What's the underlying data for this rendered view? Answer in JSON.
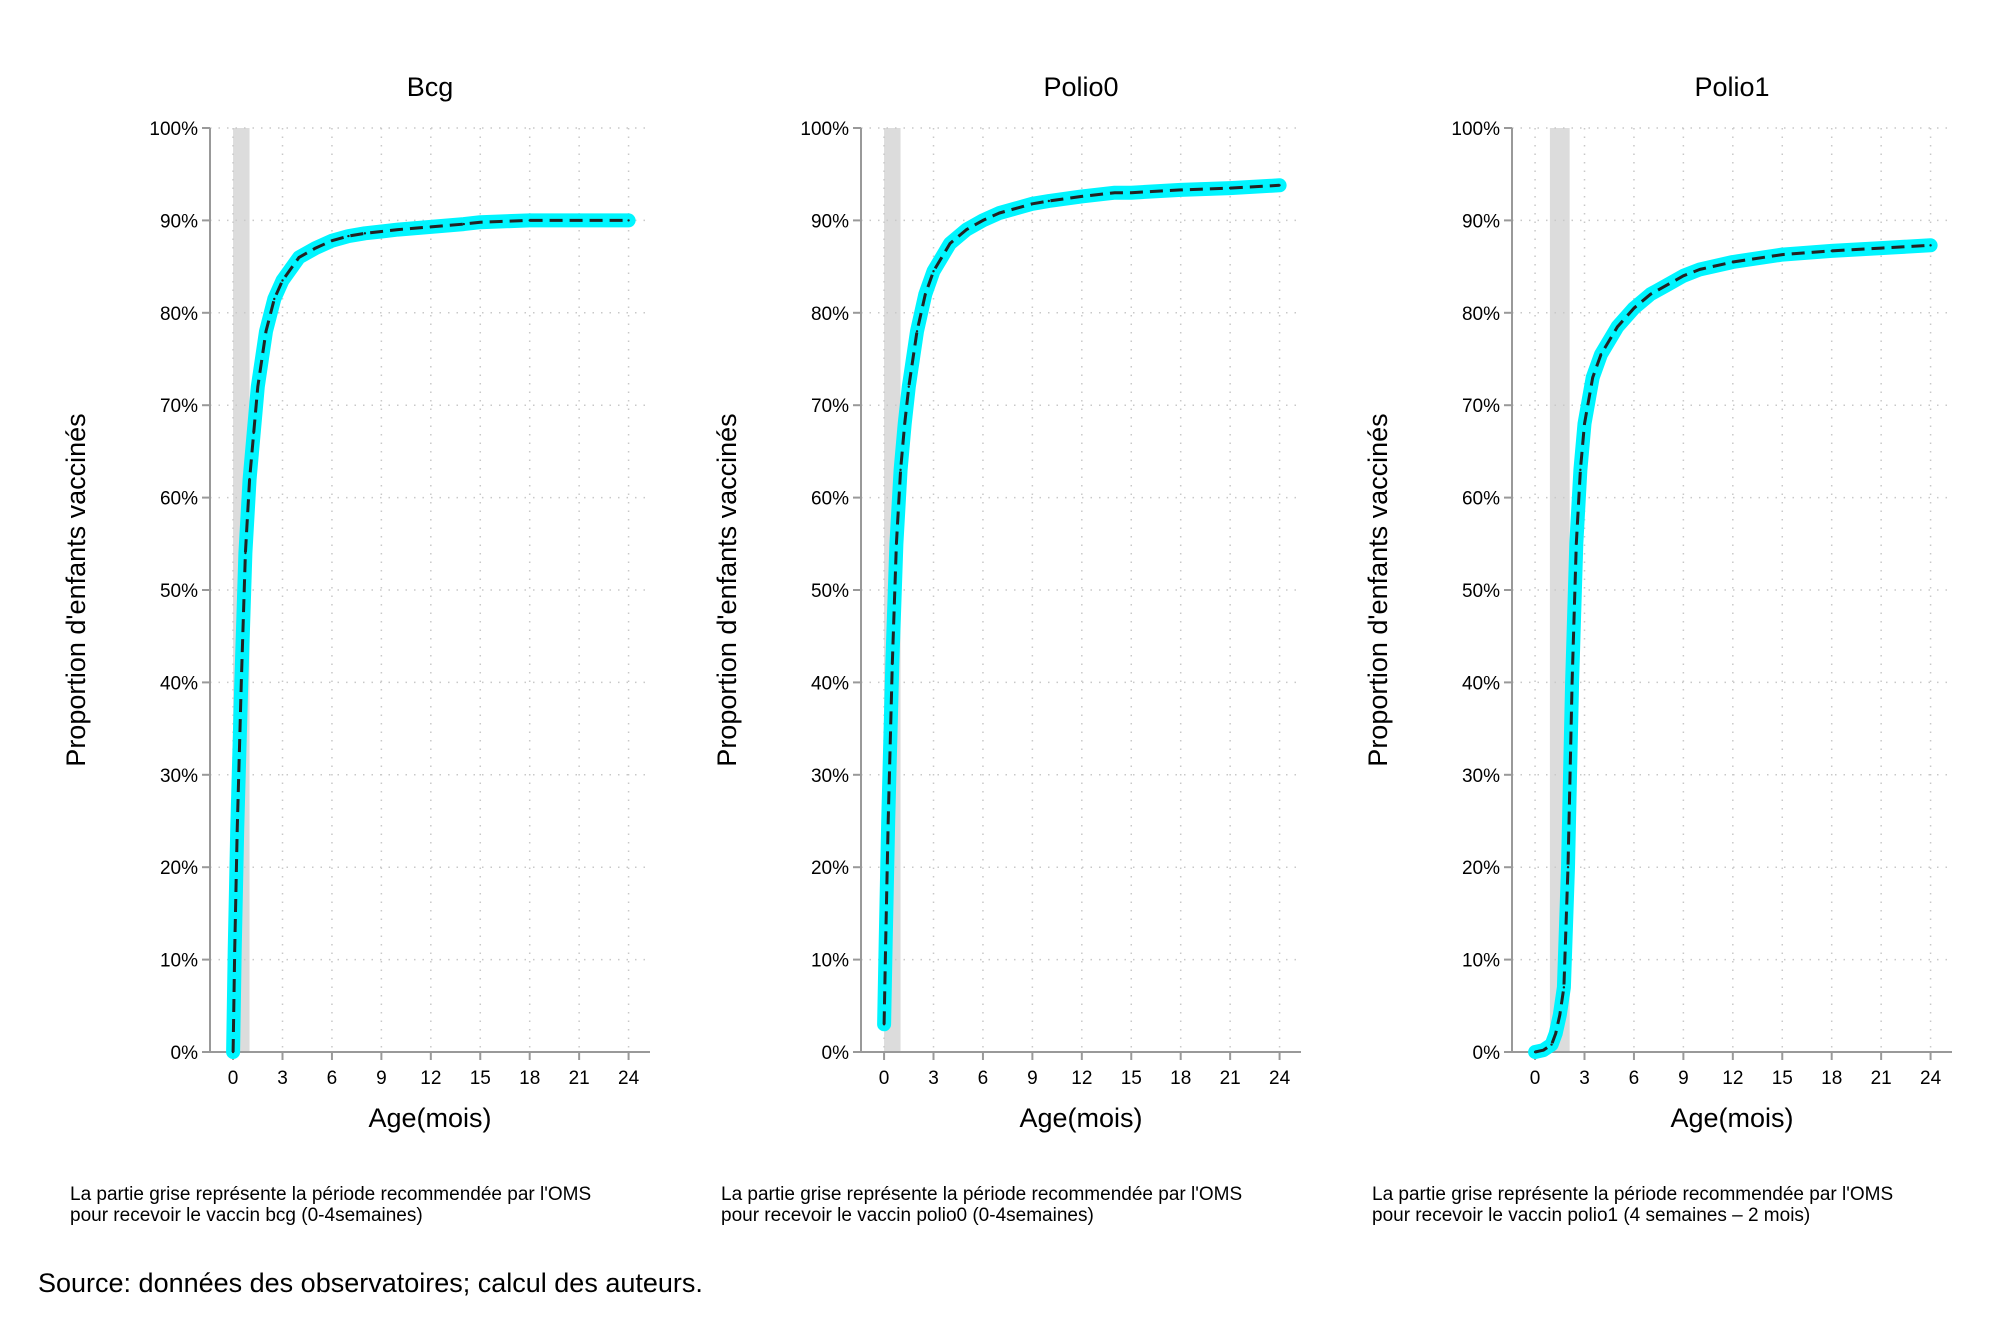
{
  "source": "Source: données des observatoires; calcul des auteurs.",
  "colors": {
    "band": "#dcdcdc",
    "ci": "#00f5ff",
    "line": "#222222",
    "axis": "#999999",
    "grid": "#c8c8c8"
  },
  "chart_data": [
    {
      "type": "line",
      "title": "Bcg",
      "xlabel": "Age(mois)",
      "ylabel": "Proportion d'enfants vaccinés",
      "x_ticks": [
        0,
        3,
        6,
        9,
        12,
        15,
        18,
        21,
        24
      ],
      "x_tick_labels": [
        "0",
        "3",
        "6",
        "9",
        "12",
        "15",
        "18",
        "21",
        "24"
      ],
      "y_ticks": [
        0,
        10,
        20,
        30,
        40,
        50,
        60,
        70,
        80,
        90,
        100
      ],
      "y_tick_labels": [
        "0%",
        "10%",
        "20%",
        "30%",
        "40%",
        "50%",
        "60%",
        "70%",
        "80%",
        "90%",
        "100%"
      ],
      "xlim": [
        -1.4,
        25.3
      ],
      "ylim": [
        0,
        100
      ],
      "grid": true,
      "shaded_period": [
        0,
        1
      ],
      "x": [
        0,
        0.1,
        0.25,
        0.5,
        0.75,
        1,
        1.25,
        1.5,
        2,
        2.5,
        3,
        4,
        5,
        6,
        7,
        8,
        9,
        10,
        12,
        14,
        15,
        18,
        21,
        24
      ],
      "values": [
        0,
        11,
        24,
        40,
        54,
        62,
        67,
        72,
        78,
        81.5,
        83.5,
        86,
        87,
        87.8,
        88.3,
        88.6,
        88.8,
        89,
        89.3,
        89.6,
        89.8,
        90,
        90,
        90
      ],
      "ci_halfwidth": 0.6,
      "note": [
        "La partie grise représente la période recommendée par l'OMS",
        "pour recevoir le vaccin bcg (0-4semaines)"
      ]
    },
    {
      "type": "line",
      "title": "Polio0",
      "xlabel": "Age(mois)",
      "ylabel": "Proportion d'enfants vaccinés",
      "x_ticks": [
        0,
        3,
        6,
        9,
        12,
        15,
        18,
        21,
        24
      ],
      "x_tick_labels": [
        "0",
        "3",
        "6",
        "9",
        "12",
        "15",
        "18",
        "21",
        "24"
      ],
      "y_ticks": [
        0,
        10,
        20,
        30,
        40,
        50,
        60,
        70,
        80,
        90,
        100
      ],
      "y_tick_labels": [
        "0%",
        "10%",
        "20%",
        "30%",
        "40%",
        "50%",
        "60%",
        "70%",
        "80%",
        "90%",
        "100%"
      ],
      "xlim": [
        -1.4,
        25.3
      ],
      "ylim": [
        0,
        100
      ],
      "grid": true,
      "shaded_period": [
        0,
        1
      ],
      "x": [
        0,
        0.1,
        0.25,
        0.5,
        0.75,
        1,
        1.25,
        1.5,
        2,
        2.5,
        3,
        4,
        5,
        6,
        7,
        8,
        9,
        10,
        12,
        14,
        15,
        18,
        21,
        24
      ],
      "values": [
        3,
        12,
        25,
        42,
        55,
        63,
        68,
        72,
        78,
        82,
        84.5,
        87.5,
        89,
        90,
        90.8,
        91.3,
        91.8,
        92.1,
        92.6,
        93,
        93,
        93.3,
        93.5,
        93.8
      ],
      "ci_halfwidth": 0.6,
      "note": [
        "La partie grise représente la période recommendée par l'OMS",
        "pour recevoir le vaccin polio0 (0-4semaines)"
      ]
    },
    {
      "type": "line",
      "title": "Polio1",
      "xlabel": "Age(mois)",
      "ylabel": "Proportion d'enfants vaccinés",
      "x_ticks": [
        0,
        3,
        6,
        9,
        12,
        15,
        18,
        21,
        24
      ],
      "x_tick_labels": [
        "0",
        "3",
        "6",
        "9",
        "12",
        "15",
        "18",
        "21",
        "24"
      ],
      "y_ticks": [
        0,
        10,
        20,
        30,
        40,
        50,
        60,
        70,
        80,
        90,
        100
      ],
      "y_tick_labels": [
        "0%",
        "10%",
        "20%",
        "30%",
        "40%",
        "50%",
        "60%",
        "70%",
        "80%",
        "90%",
        "100%"
      ],
      "xlim": [
        -1.4,
        25.3
      ],
      "ylim": [
        0,
        100
      ],
      "grid": true,
      "shaded_period": [
        0.9,
        2.1
      ],
      "x": [
        0,
        0.5,
        1,
        1.25,
        1.5,
        1.75,
        2,
        2.25,
        2.5,
        2.75,
        3,
        3.5,
        4,
        5,
        6,
        7,
        8,
        9,
        10,
        12,
        15,
        18,
        21,
        24
      ],
      "values": [
        0,
        0.2,
        0.8,
        2,
        4,
        7,
        20,
        40,
        55,
        63,
        68,
        73,
        75.5,
        78.5,
        80.5,
        82,
        83,
        84,
        84.7,
        85.5,
        86.3,
        86.7,
        87,
        87.3
      ],
      "ci_halfwidth": 0.7,
      "note": [
        "La partie grise représente la période recommendée par l'OMS",
        "pour recevoir le vaccin polio1 (4 semaines – 2 mois)"
      ]
    }
  ]
}
